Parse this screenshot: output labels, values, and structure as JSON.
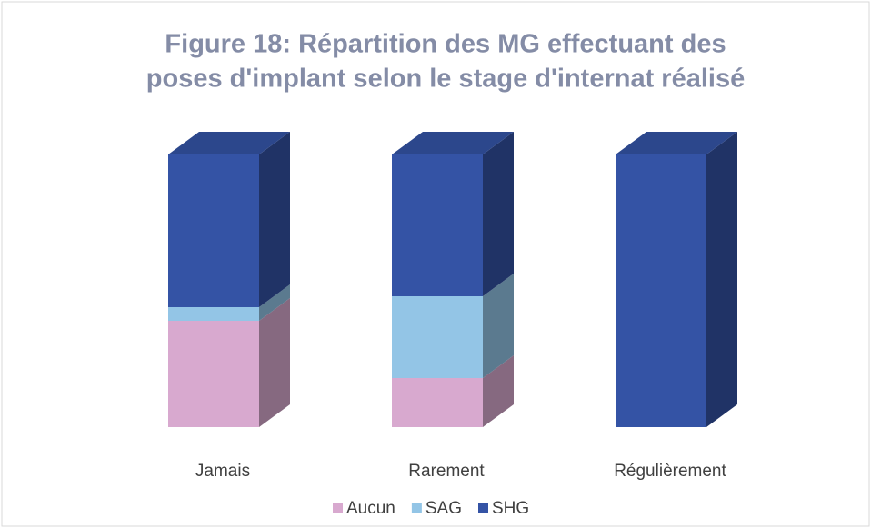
{
  "chart_data": {
    "type": "stacked-bar-3d",
    "title": [
      "Figure 18: Répartition des MG effectuant des",
      "poses d'implant selon le stage d'internat réalisé"
    ],
    "categories": [
      "Jamais",
      "Rarement",
      "Régulièrement"
    ],
    "series": [
      {
        "name": "Aucun",
        "color": "#d8a9cf",
        "values": [
          39,
          18,
          0
        ]
      },
      {
        "name": "SAG",
        "color": "#93c5e6",
        "values": [
          5,
          30,
          0
        ]
      },
      {
        "name": "SHG",
        "color": "#3453a5",
        "values": [
          56,
          52,
          100
        ]
      }
    ],
    "legend": "bottom"
  }
}
